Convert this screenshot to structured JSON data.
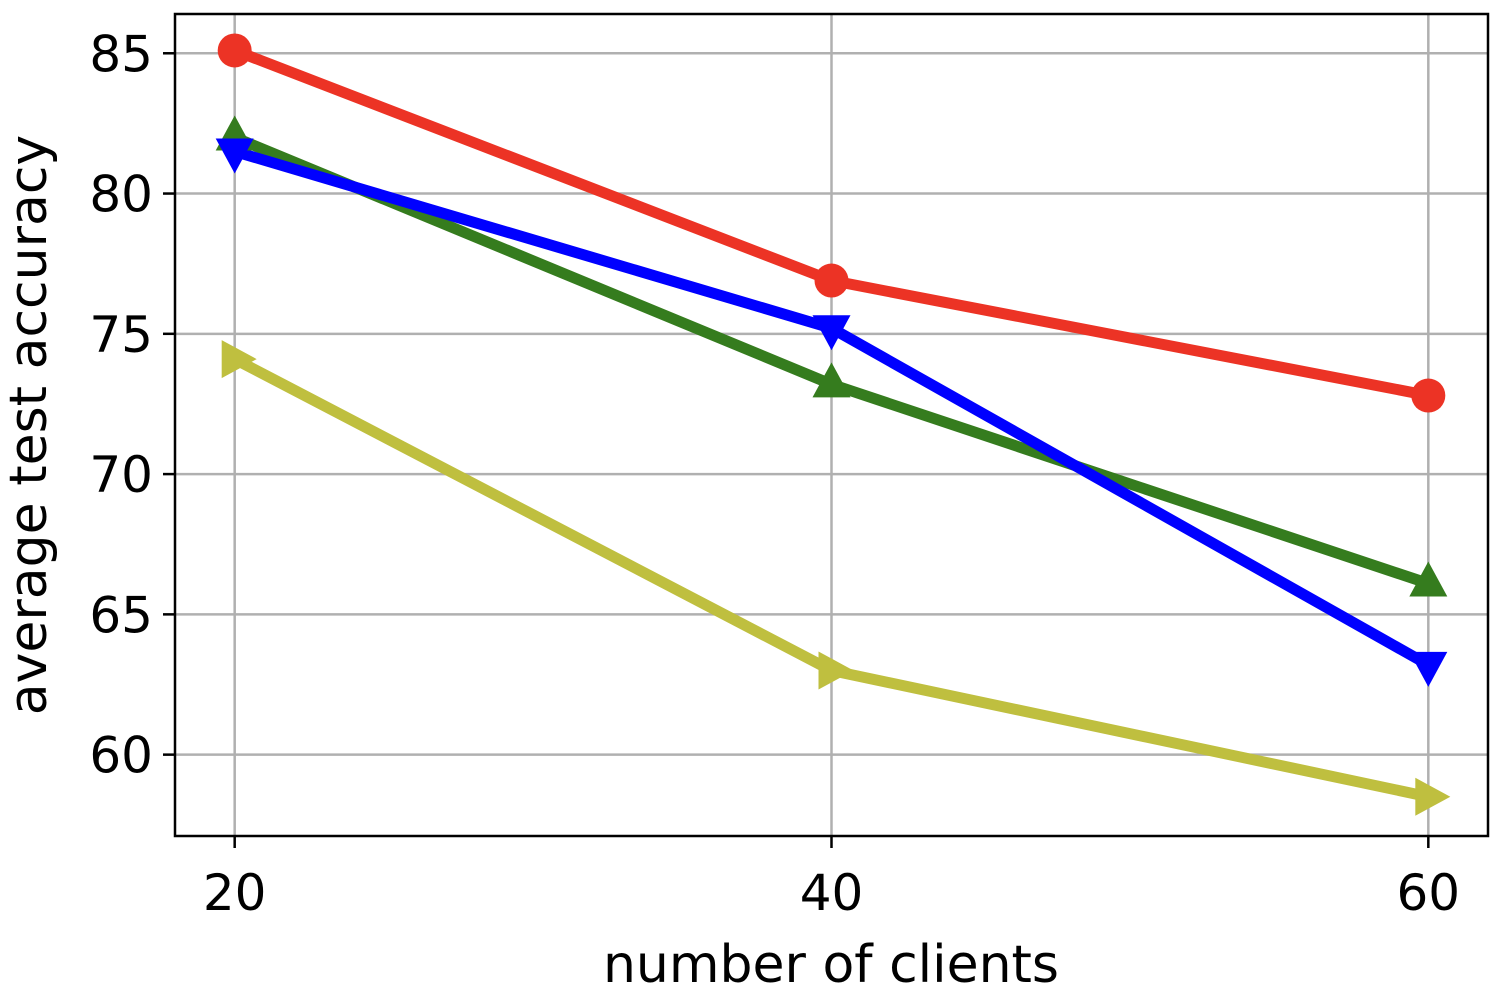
{
  "chart_data": {
    "type": "line",
    "xlabel": "number of clients",
    "ylabel": "average test accuracy",
    "x": [
      20,
      40,
      60
    ],
    "xticks": [
      20,
      40,
      60
    ],
    "yticks": [
      60,
      65,
      70,
      75,
      80,
      85
    ],
    "xlim": [
      18,
      62
    ],
    "ylim": [
      57.1,
      86.4
    ],
    "grid": true,
    "series": [
      {
        "color": "#ec3325",
        "marker": "circle",
        "values": [
          85.1,
          76.9,
          72.8
        ]
      },
      {
        "color": "#357c1e",
        "marker": "triangle-up",
        "values": [
          82.0,
          73.2,
          66.1
        ]
      },
      {
        "color": "#0000ff",
        "marker": "triangle-down",
        "values": [
          81.5,
          75.2,
          63.2
        ]
      },
      {
        "color": "#bfbf3f",
        "marker": "triangle-right",
        "values": [
          74.1,
          63.0,
          58.5
        ]
      }
    ]
  }
}
